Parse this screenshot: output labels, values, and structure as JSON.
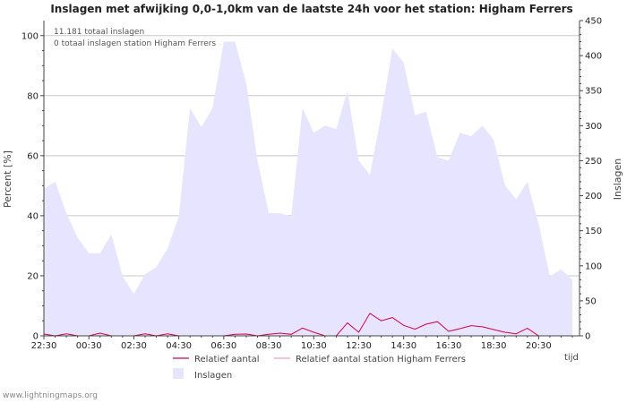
{
  "footer": "www.lightningmaps.org",
  "chart_data": {
    "type": "area",
    "title": "Inslagen met afwijking 0,0-1,0km van de laatste 24h voor het station: Higham Ferrers",
    "xlabel": "tijd",
    "ylabel_left": "Percent   [%]",
    "ylabel_right": "Inslagen",
    "ylim_left": [
      0,
      105
    ],
    "ylim_right": [
      0,
      450
    ],
    "yticks_left": [
      0,
      20,
      40,
      60,
      80,
      100
    ],
    "yticks_right": [
      0,
      50,
      100,
      150,
      200,
      250,
      300,
      350,
      400,
      450
    ],
    "grid": true,
    "x_tick_labels": [
      "22:30",
      "00:30",
      "02:30",
      "04:30",
      "06:30",
      "08:30",
      "10:30",
      "12:30",
      "14:30",
      "16:30",
      "18:30",
      "20:30"
    ],
    "annotations": [
      "11.181 totaal inslagen",
      "0 totaal inslagen station Higham Ferrers"
    ],
    "legend_location": "bottom-center",
    "legend": {
      "relatief": "Relatief aantal",
      "relatief_station": "Relatief aantal station Higham Ferrers",
      "inslagen": "Inslagen"
    },
    "colors": {
      "inslagen": "#e6e4ff",
      "relatief": "#d8004a",
      "relatief_station": "#f5a0b8",
      "grid": "#c8c8c8"
    },
    "series": [
      {
        "name": "Inslagen",
        "axis": "right",
        "values": [
          210,
          220,
          175,
          140,
          118,
          118,
          145,
          85,
          60,
          88,
          98,
          125,
          170,
          325,
          298,
          325,
          420,
          420,
          360,
          250,
          175,
          175,
          170,
          325,
          290,
          300,
          295,
          350,
          250,
          230,
          315,
          410,
          390,
          315,
          320,
          255,
          250,
          290,
          285,
          300,
          280,
          215,
          195,
          220,
          160,
          85,
          95,
          80
        ]
      },
      {
        "name": "Relatief aantal",
        "axis": "left",
        "values": [
          0.6,
          0.0,
          0.7,
          0.0,
          0.0,
          0.9,
          0.0,
          0.0,
          0.0,
          0.7,
          0.0,
          0.7,
          0.0,
          0.0,
          0.0,
          0.0,
          0.0,
          0.5,
          0.6,
          0.0,
          0.5,
          0.9,
          0.5,
          2.6,
          1.2,
          0.0,
          0.0,
          4.3,
          1.2,
          7.5,
          5.0,
          6.1,
          3.5,
          2.2,
          3.9,
          4.7,
          1.5,
          2.4,
          3.4,
          3.0,
          2.1,
          1.2,
          0.7,
          2.5,
          0.0,
          0.0,
          0.0,
          0.0
        ]
      },
      {
        "name": "Relatief aantal station Higham Ferrers",
        "axis": "left",
        "values": [
          0,
          0,
          0,
          0,
          0,
          0,
          0,
          0,
          0,
          0,
          0,
          0,
          0,
          0,
          0,
          0,
          0,
          0,
          0,
          0,
          0,
          0,
          0,
          0,
          0,
          0,
          0,
          0,
          0,
          0,
          0,
          0,
          0,
          0,
          0,
          0,
          0,
          0,
          0,
          0,
          0,
          0,
          0,
          0,
          0,
          0,
          0,
          0
        ]
      }
    ]
  }
}
